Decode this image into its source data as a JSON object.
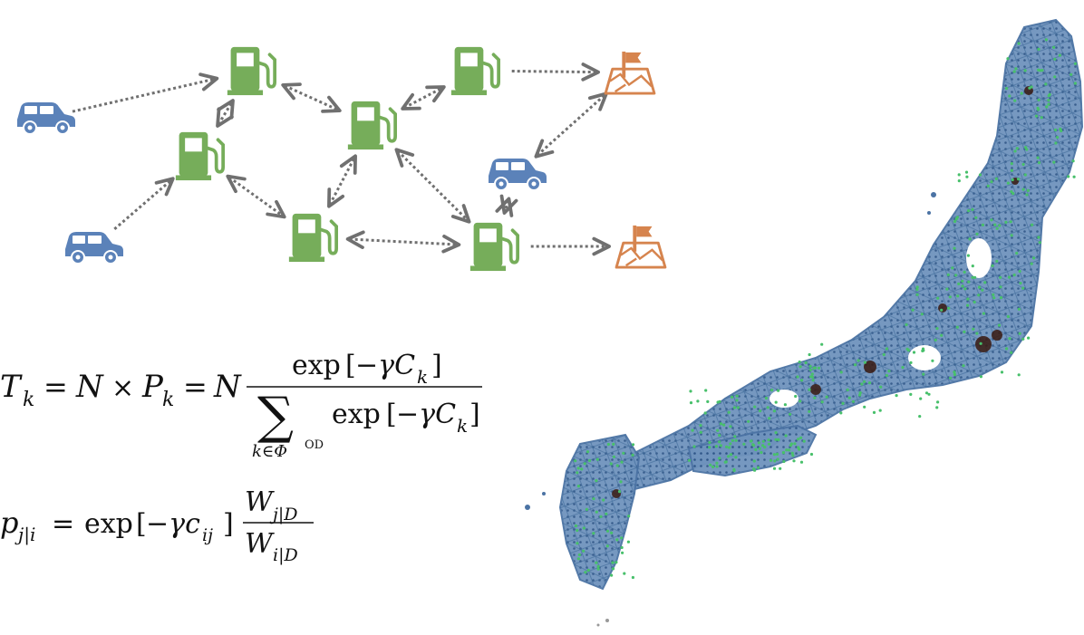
{
  "colors": {
    "car": "#5b82b9",
    "station": "#76ad5a",
    "destination": "#d6844e",
    "arrow": "#707070",
    "map_land": "#5f86b4",
    "map_dots": "#48c06b",
    "map_hub": "#3a1a10"
  },
  "icons": {
    "car": "car-icon",
    "station": "fuel-station-icon",
    "destination": "flag-map-icon"
  },
  "nodes": [
    {
      "id": "car-1",
      "type": "car"
    },
    {
      "id": "car-2",
      "type": "car"
    },
    {
      "id": "car-3",
      "type": "car"
    },
    {
      "id": "station-1",
      "type": "station"
    },
    {
      "id": "station-2",
      "type": "station"
    },
    {
      "id": "station-3",
      "type": "station"
    },
    {
      "id": "station-4",
      "type": "station"
    },
    {
      "id": "station-5",
      "type": "station"
    },
    {
      "id": "station-6",
      "type": "station"
    },
    {
      "id": "dest-1",
      "type": "destination"
    },
    {
      "id": "dest-2",
      "type": "destination"
    }
  ],
  "edges": [
    {
      "from": "car-1",
      "to": "station-1",
      "bidirectional": false
    },
    {
      "from": "car-2",
      "to": "station-2",
      "bidirectional": false
    },
    {
      "from": "station-2",
      "to": "station-1",
      "bidirectional": true
    },
    {
      "from": "station-1",
      "to": "station-3",
      "bidirectional": true
    },
    {
      "from": "station-2",
      "to": "station-4",
      "bidirectional": true
    },
    {
      "from": "station-4",
      "to": "station-3",
      "bidirectional": true
    },
    {
      "from": "station-3",
      "to": "station-5",
      "bidirectional": true
    },
    {
      "from": "station-3",
      "to": "station-6",
      "bidirectional": true
    },
    {
      "from": "station-4",
      "to": "station-6",
      "bidirectional": true
    },
    {
      "from": "station-5",
      "to": "dest-1",
      "bidirectional": false
    },
    {
      "from": "car-3",
      "to": "dest-1",
      "bidirectional": true
    },
    {
      "from": "car-3",
      "to": "station-6",
      "bidirectional": true
    },
    {
      "from": "station-6",
      "to": "dest-2",
      "bidirectional": false
    }
  ],
  "equation1": {
    "lhs": "T",
    "lhs_sub": "k",
    "eq": "=",
    "N1": "N",
    "times": "×",
    "P": "P",
    "P_sub": "k",
    "eq2": "=",
    "N2": "N",
    "num_fn": "exp",
    "num_arg_gamma": "−γC",
    "num_arg_sub": "k",
    "sum": "∑",
    "sum_index": "k∈Φ",
    "sum_index_sup": "OD",
    "den_fn": "exp",
    "den_arg_gamma": "−γC",
    "den_arg_sub": "k"
  },
  "equation2": {
    "lhs": "p",
    "lhs_sub": "j|i",
    "eq": "=",
    "fn": "exp",
    "arg_gamma": "−γc",
    "arg_sub": "ij",
    "num": "W",
    "num_sub": "j|D",
    "den": "W",
    "den_sub": "i|D"
  }
}
